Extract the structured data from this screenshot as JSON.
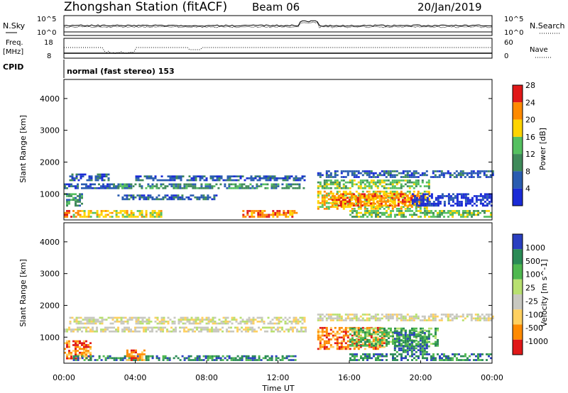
{
  "header": {
    "station": "Zhongshan Station (fitACF)",
    "beam": "Beam 06",
    "date": "20/Jan/2019"
  },
  "top_panel": {
    "left_label": "N.Sky",
    "right_label": "N.Search",
    "left_ticks": [
      "10^5",
      "10^0"
    ],
    "right_ticks": [
      "10^5",
      "10^0"
    ]
  },
  "freq_panel": {
    "left_label_1": "Freq.",
    "left_label_2": "[MHz]",
    "right_label": "Nave",
    "left_ticks": [
      "18",
      "8"
    ],
    "right_ticks": [
      "60",
      "0"
    ]
  },
  "cpid": {
    "label": "CPID",
    "value": "normal (fast stereo) 153"
  },
  "chart_data": [
    {
      "type": "heatmap",
      "name": "Power",
      "ylabel": "Slant Range [km]",
      "colorbar_label": "Power [dB]",
      "ylim": [
        180,
        4600
      ],
      "yticks": [
        "1000",
        "2000",
        "3000",
        "4000"
      ],
      "colorbar_ticks": [
        "4",
        "8",
        "12",
        "16",
        "20",
        "24",
        "28"
      ],
      "colors": [
        "#1a2bd6",
        "#2a5cb0",
        "#3f8a5a",
        "#55c060",
        "#ffd400",
        "#ff8a00",
        "#e01818"
      ],
      "bands": [
        {
          "t0": 0.0,
          "t1": 3.8,
          "r0": 1150,
          "r1": 1300,
          "level": 1
        },
        {
          "t0": 0.3,
          "t1": 2.5,
          "r0": 1400,
          "r1": 1600,
          "level": 1
        },
        {
          "t0": 0.0,
          "t1": 1.0,
          "r0": 600,
          "r1": 1000,
          "level": 2
        },
        {
          "t0": 0.0,
          "t1": 0.5,
          "r0": 250,
          "r1": 450,
          "level": 6
        },
        {
          "t0": 0.5,
          "t1": 5.5,
          "r0": 250,
          "r1": 450,
          "level": 4
        },
        {
          "t0": 3.0,
          "t1": 13.5,
          "r0": 1150,
          "r1": 1300,
          "level": 2
        },
        {
          "t0": 3.0,
          "t1": 8.5,
          "r0": 800,
          "r1": 950,
          "level": 1
        },
        {
          "t0": 4.0,
          "t1": 13.5,
          "r0": 1400,
          "r1": 1550,
          "level": 1
        },
        {
          "t0": 10.0,
          "t1": 13.0,
          "r0": 250,
          "r1": 450,
          "level": 5
        },
        {
          "t0": 14.2,
          "t1": 24.0,
          "r0": 1500,
          "r1": 1700,
          "level": 1
        },
        {
          "t0": 14.2,
          "t1": 20.5,
          "r0": 1150,
          "r1": 1450,
          "level": 3
        },
        {
          "t0": 14.2,
          "t1": 20.5,
          "r0": 500,
          "r1": 1100,
          "level": 4
        },
        {
          "t0": 15.0,
          "t1": 20.0,
          "r0": 600,
          "r1": 1000,
          "level": 5
        },
        {
          "t0": 16.0,
          "t1": 24.0,
          "r0": 250,
          "r1": 450,
          "level": 3
        },
        {
          "t0": 19.5,
          "t1": 24.0,
          "r0": 600,
          "r1": 1000,
          "level": 0
        }
      ]
    },
    {
      "type": "heatmap",
      "name": "Velocity",
      "ylabel": "Slant Range [km]",
      "colorbar_label": "Velocity [m s^-1]",
      "ylim": [
        180,
        4600
      ],
      "yticks": [
        "1000",
        "2000",
        "3000",
        "4000"
      ],
      "colorbar_ticks": [
        "1000",
        "500",
        "100",
        "25",
        "-25",
        "-100",
        "-500",
        "-1000"
      ],
      "colors": [
        "#2a3fc0",
        "#2a8a55",
        "#4fb84f",
        "#b8e070",
        "#c8c8c0",
        "#ffd060",
        "#ff8a00",
        "#e01818"
      ],
      "bands": [
        {
          "t0": 0.0,
          "t1": 13.5,
          "r0": 1150,
          "r1": 1300,
          "level": 4
        },
        {
          "t0": 0.3,
          "t1": 13.5,
          "r0": 1400,
          "r1": 1600,
          "level": 4
        },
        {
          "t0": 0.0,
          "t1": 1.5,
          "r0": 300,
          "r1": 900,
          "level": 6
        },
        {
          "t0": 0.5,
          "t1": 13.0,
          "r0": 250,
          "r1": 400,
          "level": 1
        },
        {
          "t0": 3.5,
          "t1": 4.5,
          "r0": 250,
          "r1": 600,
          "level": 6
        },
        {
          "t0": 14.2,
          "t1": 24.0,
          "r0": 1500,
          "r1": 1700,
          "level": 4
        },
        {
          "t0": 14.2,
          "t1": 18.0,
          "r0": 600,
          "r1": 1300,
          "level": 6
        },
        {
          "t0": 16.0,
          "t1": 21.0,
          "r0": 700,
          "r1": 1300,
          "level": 2
        },
        {
          "t0": 18.5,
          "t1": 20.5,
          "r0": 500,
          "r1": 1200,
          "level": 1
        },
        {
          "t0": 16.0,
          "t1": 24.0,
          "r0": 250,
          "r1": 450,
          "level": 1
        }
      ]
    }
  ],
  "x_axis": {
    "label": "Time UT",
    "ticks": [
      "00:00",
      "04:00",
      "08:00",
      "12:00",
      "16:00",
      "20:00",
      "00:00"
    ],
    "xlim": [
      0,
      24
    ]
  }
}
